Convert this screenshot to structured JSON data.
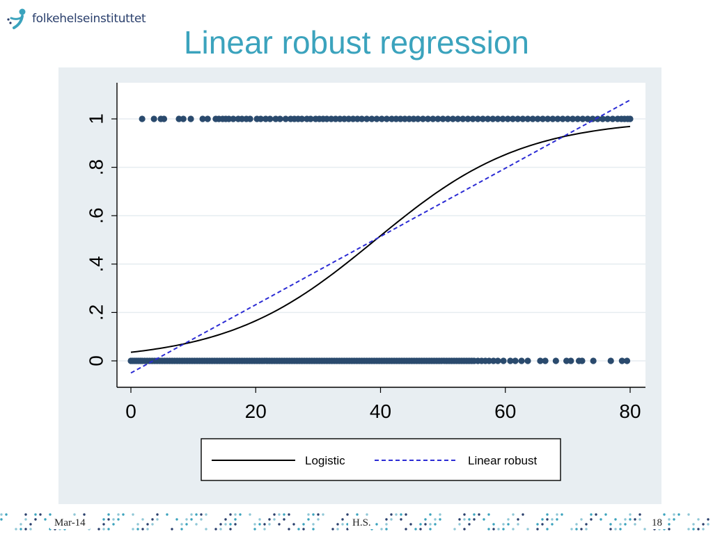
{
  "logo": {
    "text": "folkehelseinstituttet",
    "icon": "person-figure-icon",
    "color": "#2a3f6c",
    "accent": "#3ba3bd"
  },
  "slide": {
    "title": "Linear robust regression"
  },
  "footer": {
    "date": "Mar-14",
    "author": "H.S.",
    "page": "18"
  },
  "chart_data": {
    "type": "scatter",
    "title": "",
    "xlabel": "",
    "ylabel": "",
    "xlim": [
      0,
      80
    ],
    "ylim": [
      0,
      1
    ],
    "x_ticks": [
      "0",
      "20",
      "40",
      "60",
      "80"
    ],
    "y_ticks": [
      "0",
      ".2",
      ".4",
      ".6",
      ".8",
      "1"
    ],
    "grid": true,
    "legend_position": "bottom",
    "series": [
      {
        "name": "",
        "kind": "points",
        "color": "#2a4a6d",
        "points": [
          [
            0,
            0
          ],
          [
            0.3,
            0
          ],
          [
            0.6,
            0
          ],
          [
            0.9,
            0
          ],
          [
            1.2,
            0
          ],
          [
            1.5,
            0
          ],
          [
            1.8,
            0
          ],
          [
            2.2,
            0
          ],
          [
            2.6,
            0
          ],
          [
            3,
            0
          ],
          [
            3.4,
            0
          ],
          [
            3.8,
            0
          ],
          [
            4.2,
            0
          ],
          [
            4.6,
            0
          ],
          [
            5,
            0
          ],
          [
            5.4,
            0
          ],
          [
            5.8,
            0
          ],
          [
            6.2,
            0
          ],
          [
            6.6,
            0
          ],
          [
            7,
            0
          ],
          [
            7.4,
            0
          ],
          [
            7.8,
            0
          ],
          [
            8.2,
            0
          ],
          [
            8.6,
            0
          ],
          [
            9,
            0
          ],
          [
            9.4,
            0
          ],
          [
            9.8,
            0
          ],
          [
            10.2,
            0
          ],
          [
            10.6,
            0
          ],
          [
            11,
            0
          ],
          [
            11.4,
            0
          ],
          [
            11.8,
            0
          ],
          [
            12.2,
            0
          ],
          [
            12.6,
            0
          ],
          [
            13,
            0
          ],
          [
            13.4,
            0
          ],
          [
            13.8,
            0
          ],
          [
            14.2,
            0
          ],
          [
            14.6,
            0
          ],
          [
            15,
            0
          ],
          [
            15.4,
            0
          ],
          [
            15.8,
            0
          ],
          [
            16.2,
            0
          ],
          [
            16.6,
            0
          ],
          [
            17,
            0
          ],
          [
            17.4,
            0
          ],
          [
            17.8,
            0
          ],
          [
            18.2,
            0
          ],
          [
            18.6,
            0
          ],
          [
            19,
            0
          ],
          [
            19.4,
            0
          ],
          [
            19.8,
            0
          ],
          [
            20.2,
            0
          ],
          [
            20.6,
            0
          ],
          [
            21,
            0
          ],
          [
            21.4,
            0
          ],
          [
            21.8,
            0
          ],
          [
            22.2,
            0
          ],
          [
            22.6,
            0
          ],
          [
            23,
            0
          ],
          [
            23.4,
            0
          ],
          [
            23.8,
            0
          ],
          [
            24.2,
            0
          ],
          [
            24.6,
            0
          ],
          [
            25,
            0
          ],
          [
            25.4,
            0
          ],
          [
            25.8,
            0
          ],
          [
            26.2,
            0
          ],
          [
            26.6,
            0
          ],
          [
            27,
            0
          ],
          [
            27.4,
            0
          ],
          [
            27.8,
            0
          ],
          [
            28.2,
            0
          ],
          [
            28.6,
            0
          ],
          [
            29,
            0
          ],
          [
            29.4,
            0
          ],
          [
            29.8,
            0
          ],
          [
            30.2,
            0
          ],
          [
            30.6,
            0
          ],
          [
            31,
            0
          ],
          [
            31.4,
            0
          ],
          [
            31.8,
            0
          ],
          [
            32.2,
            0
          ],
          [
            32.6,
            0
          ],
          [
            33,
            0
          ],
          [
            33.4,
            0
          ],
          [
            33.8,
            0
          ],
          [
            34.2,
            0
          ],
          [
            34.6,
            0
          ],
          [
            35,
            0
          ],
          [
            35.4,
            0
          ],
          [
            35.8,
            0
          ],
          [
            36.2,
            0
          ],
          [
            36.6,
            0
          ],
          [
            37,
            0
          ],
          [
            37.4,
            0
          ],
          [
            37.8,
            0
          ],
          [
            38.2,
            0
          ],
          [
            38.6,
            0
          ],
          [
            39,
            0
          ],
          [
            39.4,
            0
          ],
          [
            39.8,
            0
          ],
          [
            40.2,
            0
          ],
          [
            40.6,
            0
          ],
          [
            41,
            0
          ],
          [
            41.4,
            0
          ],
          [
            41.8,
            0
          ],
          [
            42.2,
            0
          ],
          [
            42.6,
            0
          ],
          [
            43,
            0
          ],
          [
            43.4,
            0
          ],
          [
            43.8,
            0
          ],
          [
            44.2,
            0
          ],
          [
            44.6,
            0
          ],
          [
            45,
            0
          ],
          [
            45.4,
            0
          ],
          [
            45.8,
            0
          ],
          [
            46.2,
            0
          ],
          [
            46.6,
            0
          ],
          [
            47,
            0
          ],
          [
            47.4,
            0
          ],
          [
            47.8,
            0
          ],
          [
            48.2,
            0
          ],
          [
            48.6,
            0
          ],
          [
            49,
            0
          ],
          [
            49.4,
            0
          ],
          [
            49.8,
            0
          ],
          [
            50.2,
            0
          ],
          [
            50.6,
            0
          ],
          [
            51,
            0
          ],
          [
            51.4,
            0
          ],
          [
            51.8,
            0
          ],
          [
            52.2,
            0
          ],
          [
            52.6,
            0
          ],
          [
            53,
            0
          ],
          [
            53.4,
            0
          ],
          [
            53.8,
            0
          ],
          [
            54.2,
            0
          ],
          [
            54.6,
            0
          ],
          [
            55,
            0
          ],
          [
            55.6,
            0
          ],
          [
            56.2,
            0
          ],
          [
            56.8,
            0
          ],
          [
            57.4,
            0
          ],
          [
            58.1,
            0
          ],
          [
            58.8,
            0
          ],
          [
            59.7,
            0
          ],
          [
            60.8,
            0
          ],
          [
            61.6,
            0
          ],
          [
            62.6,
            0
          ],
          [
            63.6,
            0
          ],
          [
            65.6,
            0
          ],
          [
            66.4,
            0
          ],
          [
            68.1,
            0
          ],
          [
            69.8,
            0
          ],
          [
            70.5,
            0
          ],
          [
            71.8,
            0
          ],
          [
            72.3,
            0
          ],
          [
            74.1,
            0
          ],
          [
            76.9,
            0
          ],
          [
            78.7,
            0
          ],
          [
            79.5,
            0
          ],
          [
            1.8,
            1
          ],
          [
            3.7,
            1
          ],
          [
            4.8,
            1
          ],
          [
            5.3,
            1
          ],
          [
            7.7,
            1
          ],
          [
            8.4,
            1
          ],
          [
            9.6,
            1
          ],
          [
            11.5,
            1
          ],
          [
            12.3,
            1
          ],
          [
            13.6,
            1
          ],
          [
            14.1,
            1
          ],
          [
            14.7,
            1
          ],
          [
            15.2,
            1
          ],
          [
            15.7,
            1
          ],
          [
            16.4,
            1
          ],
          [
            17.2,
            1
          ],
          [
            17.8,
            1
          ],
          [
            18.5,
            1
          ],
          [
            19.1,
            1
          ],
          [
            20.2,
            1
          ],
          [
            20.8,
            1
          ],
          [
            21.6,
            1
          ],
          [
            22.3,
            1
          ],
          [
            23.2,
            1
          ],
          [
            23.9,
            1
          ],
          [
            24.8,
            1
          ],
          [
            25.6,
            1
          ],
          [
            26.2,
            1
          ],
          [
            26.8,
            1
          ],
          [
            27.4,
            1
          ],
          [
            28.2,
            1
          ],
          [
            28.8,
            1
          ],
          [
            29.6,
            1
          ],
          [
            30.2,
            1
          ],
          [
            30.8,
            1
          ],
          [
            31.4,
            1
          ],
          [
            32.1,
            1
          ],
          [
            32.8,
            1
          ],
          [
            33.5,
            1
          ],
          [
            34.2,
            1
          ],
          [
            34.9,
            1
          ],
          [
            35.6,
            1
          ],
          [
            36.3,
            1
          ],
          [
            37,
            1
          ],
          [
            37.8,
            1
          ],
          [
            38.6,
            1
          ],
          [
            39.4,
            1
          ],
          [
            40.2,
            1
          ],
          [
            41,
            1
          ],
          [
            41.8,
            1
          ],
          [
            42.5,
            1
          ],
          [
            43.2,
            1
          ],
          [
            43.9,
            1
          ],
          [
            44.6,
            1
          ],
          [
            45.3,
            1
          ],
          [
            46,
            1
          ],
          [
            46.8,
            1
          ],
          [
            47.6,
            1
          ],
          [
            48.4,
            1
          ],
          [
            49.2,
            1
          ],
          [
            50,
            1
          ],
          [
            50.8,
            1
          ],
          [
            51.6,
            1
          ],
          [
            52.4,
            1
          ],
          [
            53.2,
            1
          ],
          [
            54,
            1
          ],
          [
            54.8,
            1
          ],
          [
            55.6,
            1
          ],
          [
            56.4,
            1
          ],
          [
            57.2,
            1
          ],
          [
            58,
            1
          ],
          [
            58.8,
            1
          ],
          [
            59.6,
            1
          ],
          [
            60.4,
            1
          ],
          [
            61.2,
            1
          ],
          [
            62,
            1
          ],
          [
            62.8,
            1
          ],
          [
            63.6,
            1
          ],
          [
            64.4,
            1
          ],
          [
            65.2,
            1
          ],
          [
            66,
            1
          ],
          [
            66.8,
            1
          ],
          [
            67.6,
            1
          ],
          [
            68.4,
            1
          ],
          [
            69.2,
            1
          ],
          [
            70,
            1
          ],
          [
            70.8,
            1
          ],
          [
            71.6,
            1
          ],
          [
            72.4,
            1
          ],
          [
            73.2,
            1
          ],
          [
            74,
            1
          ],
          [
            74.8,
            1
          ],
          [
            75.6,
            1
          ],
          [
            76.4,
            1
          ],
          [
            77.2,
            1
          ],
          [
            78,
            1
          ],
          [
            78.6,
            1
          ],
          [
            79.1,
            1
          ],
          [
            79.6,
            1
          ],
          [
            80,
            1
          ]
        ]
      },
      {
        "name": "Logistic",
        "kind": "curve",
        "color": "#000000",
        "dash": "solid",
        "model": "logistic",
        "intercept": -3.3,
        "slope": 0.0842
      },
      {
        "name": "Linear robust",
        "kind": "line",
        "color": "#2b2bd4",
        "dash": "dashed",
        "model": "linear",
        "intercept": -0.05,
        "slope": 0.0141
      }
    ]
  }
}
